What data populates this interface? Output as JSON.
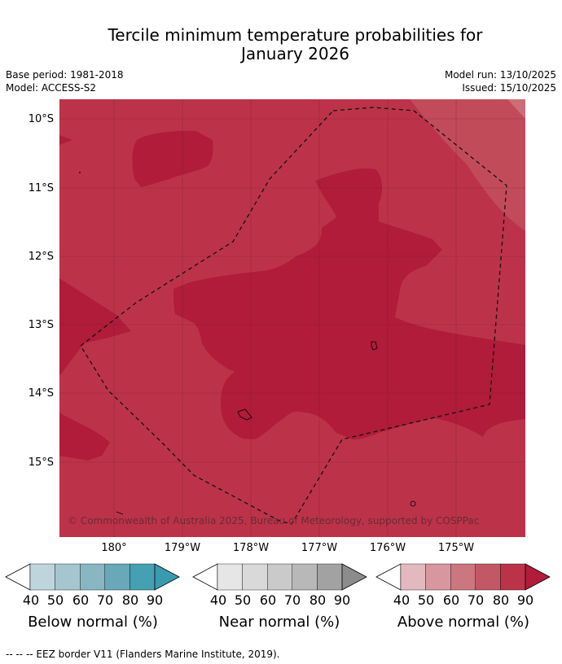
{
  "title_line1": "Tercile minimum temperature probabilities for",
  "title_line2": "January 2026",
  "base_period": "Base period: 1981-2018",
  "model": "Model: ACCESS-S2",
  "model_run": "Model run: 13/10/2025",
  "issued": "Issued: 15/10/2025",
  "lat_labels": [
    "10°S",
    "11°S",
    "12°S",
    "13°S",
    "14°S",
    "15°S"
  ],
  "lon_labels": [
    "180°",
    "179°W",
    "178°W",
    "177°W",
    "176°W",
    "175°W"
  ],
  "copyright": "© Commonwealth of Australia 2025, Bureau of Meteorology, supported by COSPPac",
  "colorbars": [
    {
      "label": "Below normal (%)",
      "ticks": [
        "40",
        "50",
        "60",
        "70",
        "80",
        "90"
      ],
      "colors": [
        "#ffffff",
        "#bed5dd",
        "#a5c6cf",
        "#88b7c3",
        "#68a8b8",
        "#44a0b2",
        "#3a9bb0"
      ]
    },
    {
      "label": "Near normal (%)",
      "ticks": [
        "40",
        "50",
        "60",
        "70",
        "80",
        "90"
      ],
      "colors": [
        "#ffffff",
        "#e6e6e6",
        "#d9d9d9",
        "#cacaca",
        "#b8b8b8",
        "#a2a2a2",
        "#8c8c8c"
      ]
    },
    {
      "label": "Above normal (%)",
      "ticks": [
        "40",
        "50",
        "60",
        "70",
        "80",
        "90"
      ],
      "colors": [
        "#ffffff",
        "#e3b9c0",
        "#d8969f",
        "#cc7780",
        "#c25866",
        "#bc3349",
        "#b01c3a"
      ]
    }
  ],
  "footnote": "-- -- -- EEZ border V11 (Flanders Marine Institute, 2019)."
}
